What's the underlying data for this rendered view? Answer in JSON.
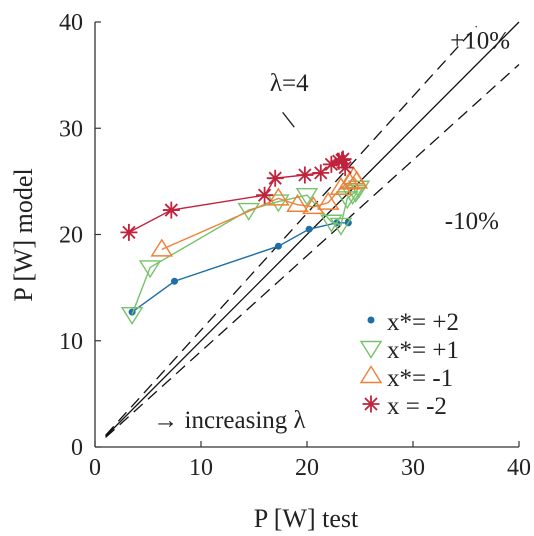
{
  "chart_data": {
    "type": "line",
    "xlabel": "P [W] test",
    "ylabel": "P [W] model",
    "xlim": [
      0,
      40
    ],
    "ylim": [
      0,
      40
    ],
    "xticks": [
      "0",
      "10",
      "20",
      "30",
      "40"
    ],
    "yticks": [
      "0",
      "10",
      "20",
      "30",
      "40"
    ],
    "grid": false,
    "legend_position": "bottom-right",
    "reference_lines": [
      {
        "name": "identity",
        "style": "solid",
        "x": [
          1,
          40
        ],
        "y": [
          1,
          40
        ]
      },
      {
        "name": "+10%",
        "style": "dashed",
        "x": [
          1,
          36
        ],
        "y": [
          1.1,
          39.6
        ]
      },
      {
        "name": "-10%",
        "style": "dashed",
        "x": [
          1,
          40
        ],
        "y": [
          0.9,
          36
        ]
      }
    ],
    "annotations": [
      {
        "text": "+10%",
        "x": 33.5,
        "y": 37.5
      },
      {
        "text": "-10%",
        "x": 33,
        "y": 20.5
      },
      {
        "text": "λ=4",
        "x": 16.5,
        "y": 33.5
      },
      {
        "text": "→ increasing λ",
        "x": 5.5,
        "y": 1.8
      }
    ],
    "lambda_pointer": {
      "x": [
        17.7,
        18.8
      ],
      "y": [
        31.5,
        30.1
      ]
    },
    "series": [
      {
        "name": "x*= +2",
        "legend_label": "x*= +2",
        "color": "#1f6fa6",
        "marker": "dot",
        "x": [
          3.5,
          7.5,
          17.3,
          20.2,
          22.8,
          23.9
        ],
        "y": [
          12.7,
          15.6,
          18.9,
          20.5,
          21.1,
          21.1
        ]
      },
      {
        "name": "x*= +1",
        "legend_label": "x*= +1",
        "color": "#77c36b",
        "marker": "triangle-down",
        "x": [
          3.5,
          5.2,
          14.5,
          17.3,
          20.0,
          22.3,
          23.2,
          23.8,
          24.3,
          24.6,
          24.9
        ],
        "y": [
          12.5,
          16.9,
          22.3,
          23.1,
          23.7,
          21.2,
          20.9,
          23.4,
          23.8,
          24.0,
          24.4
        ]
      },
      {
        "name": "x*= -1",
        "legend_label": "x*= -1",
        "color": "#ef8038",
        "marker": "triangle-up",
        "x": [
          6.3,
          17.3,
          19.1,
          20.6,
          22.0,
          23.2,
          24.0,
          24.4,
          24.7
        ],
        "y": [
          18.6,
          23.4,
          22.8,
          22.6,
          23.0,
          24.4,
          24.9,
          25.4,
          25.0
        ]
      },
      {
        "name": "x = -2",
        "legend_label": "x  = -2",
        "color": "#c0233c",
        "marker": "asterisk",
        "x": [
          3.2,
          7.2,
          16.0,
          17.0,
          19.8,
          21.3,
          22.3,
          23.0,
          23.4,
          23.6,
          23.3
        ],
        "y": [
          20.2,
          22.3,
          23.7,
          25.3,
          25.6,
          25.8,
          26.6,
          26.9,
          27.1,
          26.3,
          27.0
        ]
      }
    ]
  }
}
